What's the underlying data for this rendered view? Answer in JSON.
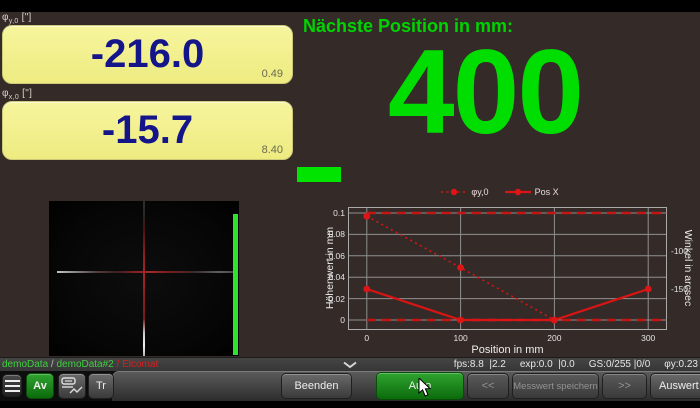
{
  "colors": {
    "accent_green": "#00dd00",
    "value_navy": "#15158a",
    "chart_red": "#d81414",
    "panel_yellow": "#f2f08c"
  },
  "readouts": [
    {
      "symbol": "φ",
      "sub": "y,0",
      "unit": "[\"]",
      "value": "-216.0",
      "secondary": "0.49"
    },
    {
      "symbol": "φ",
      "sub": "x,0",
      "unit": "[\"]",
      "value": "-15.7",
      "secondary": "8.40"
    }
  ],
  "next_position": {
    "label": "Nächste Position in mm:",
    "value": "400"
  },
  "chart_data": {
    "type": "line",
    "xlabel": "Position in mm",
    "ylabel_left": "Höhenwert in mm",
    "ylabel_right": "Winkel in arcsec",
    "xlim": [
      -20,
      320
    ],
    "ylim_left": [
      0,
      0.1
    ],
    "ylim_right": [
      -190,
      -50
    ],
    "x_ticks": [
      0,
      100,
      200,
      300
    ],
    "y_ticks_left": [
      0,
      0.02,
      0.04,
      0.06,
      0.08,
      0.1
    ],
    "y_ticks_right": [
      -100,
      -150
    ],
    "grid": true,
    "legend_position": "top-center",
    "limit_lines_left": [
      0.1,
      0
    ],
    "series": [
      {
        "name": "φy,0",
        "style": "dotted",
        "axis": "left",
        "x": [
          0,
          100,
          200
        ],
        "y": [
          0.097,
          0.049,
          0
        ]
      },
      {
        "name": "Pos X",
        "style": "solid",
        "axis": "left",
        "x": [
          0,
          100,
          200,
          300
        ],
        "y": [
          0.029,
          0,
          0,
          0.029
        ]
      }
    ]
  },
  "status_bar": {
    "breadcrumb": [
      {
        "label": "demoData"
      },
      {
        "label": "/"
      },
      {
        "label": "demoData#2"
      },
      {
        "label": "/"
      },
      {
        "label": "Elcomat"
      }
    ],
    "stats": [
      "fps:8.8  |2.2",
      "exp:0.0  |0.0",
      "GS:0/255 |0/0",
      "φy:0.23"
    ]
  },
  "toolbar": {
    "av": "Av",
    "tr": "Tr",
    "beenden": "Beenden",
    "auto": "Auto",
    "prev": "<<",
    "save": "Messwert speichern",
    "next": ">>",
    "auswert": "Auswert"
  }
}
